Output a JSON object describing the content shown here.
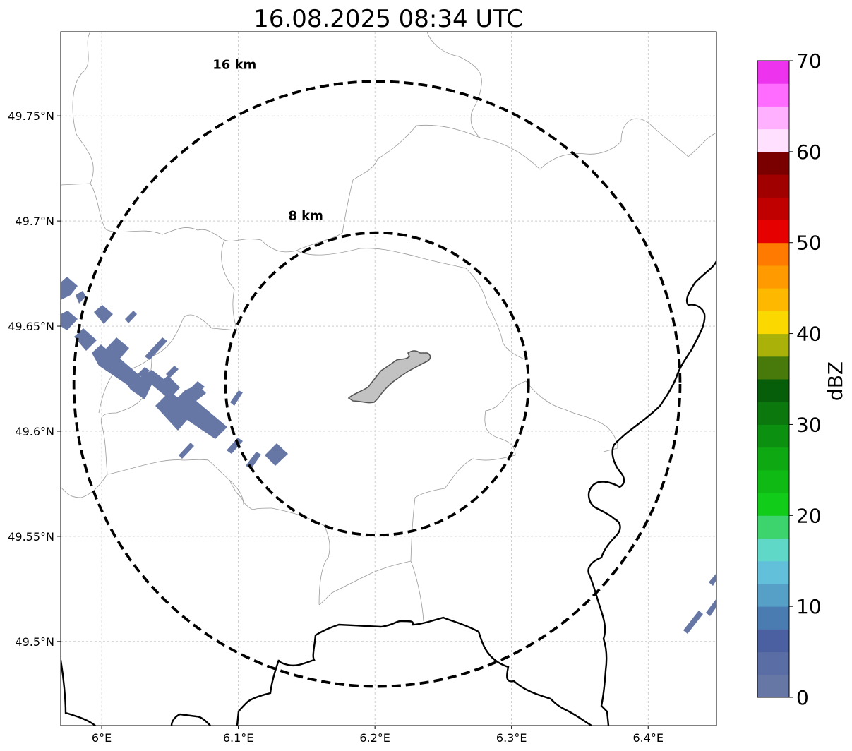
{
  "title": "16.08.2025 08:34 UTC",
  "map": {
    "lon_range": [
      5.97,
      6.45
    ],
    "lat_range": [
      49.46,
      49.79
    ],
    "radar_center": {
      "lon": 6.2015,
      "lat": 49.6225
    },
    "gridlines": true,
    "x_ticks": [
      {
        "value": 6.0,
        "label": "6°E"
      },
      {
        "value": 6.1,
        "label": "6.1°E"
      },
      {
        "value": 6.2,
        "label": "6.2°E"
      },
      {
        "value": 6.3,
        "label": "6.3°E"
      },
      {
        "value": 6.4,
        "label": "6.4°E"
      }
    ],
    "y_ticks": [
      {
        "value": 49.75,
        "label": "49.75°N"
      },
      {
        "value": 49.7,
        "label": "49.7°N"
      },
      {
        "value": 49.65,
        "label": "49.65°N"
      },
      {
        "value": 49.6,
        "label": "49.6°N"
      },
      {
        "value": 49.55,
        "label": "49.55°N"
      },
      {
        "value": 49.5,
        "label": "49.5°N"
      }
    ],
    "range_rings": [
      {
        "radius_km": 8,
        "label": "8 km"
      },
      {
        "radius_km": 16,
        "label": "16 km"
      }
    ],
    "reflectivity_color": "#6677a6"
  },
  "colorbar": {
    "title": "dBZ",
    "min": 0,
    "max": 70,
    "tick_values": [
      0,
      10,
      20,
      30,
      40,
      50,
      60,
      70
    ],
    "colors": [
      "#6677a6",
      "#5a6da4",
      "#4a60a0",
      "#4a7bb1",
      "#56a0c8",
      "#62c0da",
      "#60d8c8",
      "#3dd46e",
      "#12cc1a",
      "#10ba14",
      "#0ea812",
      "#0c900f",
      "#0a780c",
      "#075e0a",
      "#477a0a",
      "#aab20a",
      "#fbd800",
      "#ffb800",
      "#ff9a00",
      "#ff7a00",
      "#e60000",
      "#c00000",
      "#a00000",
      "#7a0000",
      "#ffe0ff",
      "#ffb0ff",
      "#ff6cff",
      "#ee33ee"
    ]
  }
}
